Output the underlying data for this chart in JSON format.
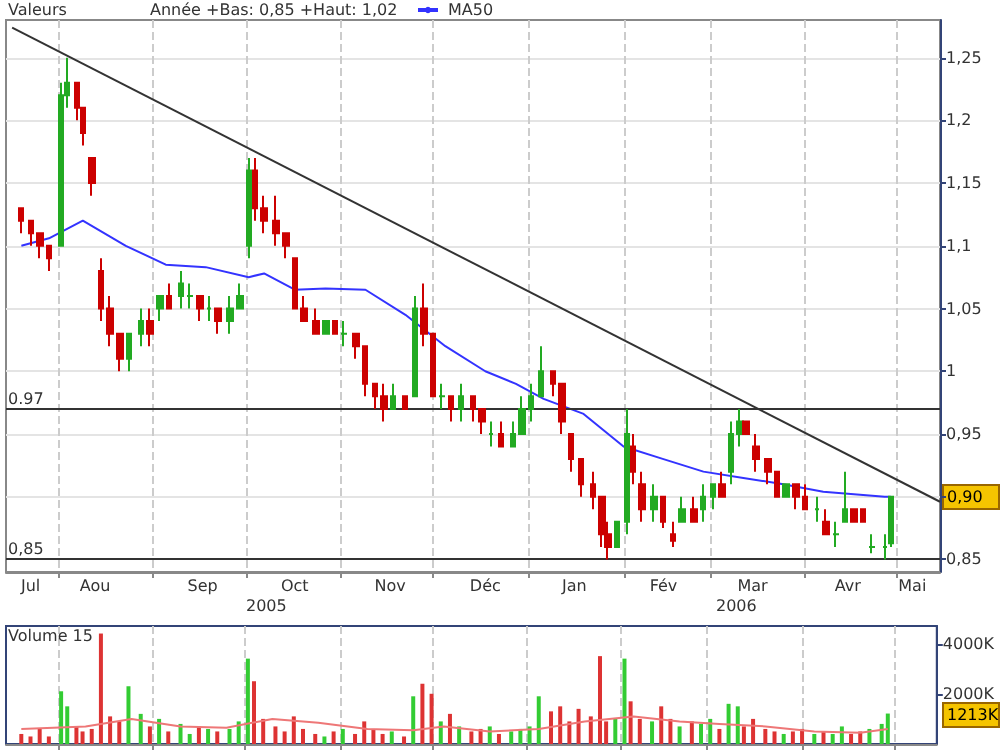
{
  "chart_data": [
    {
      "type": "candlestick",
      "legend_title": "Valeurs",
      "subtitle": "Année +Bas: 0,85 +Haut: 1,02",
      "legend": "top left",
      "grid": true,
      "x": [
        "2005-07-20",
        "2005-07-23",
        "2005-07-26",
        "2005-07-29",
        "2005-08-02",
        "2005-08-04",
        "2005-08-07",
        "2005-08-09",
        "2005-08-12",
        "2005-08-15",
        "2005-08-18",
        "2005-08-21",
        "2005-08-24",
        "2005-08-28",
        "2005-08-31",
        "2005-09-03",
        "2005-09-06",
        "2005-09-10",
        "2005-09-13",
        "2005-09-16",
        "2005-09-19",
        "2005-09-22",
        "2005-09-26",
        "2005-09-29",
        "2005-10-02",
        "2005-10-04",
        "2005-10-07",
        "2005-10-11",
        "2005-10-14",
        "2005-10-17",
        "2005-10-20",
        "2005-10-24",
        "2005-10-27",
        "2005-10-30",
        "2005-11-02",
        "2005-11-06",
        "2005-11-09",
        "2005-11-12",
        "2005-11-15",
        "2005-11-18",
        "2005-11-22",
        "2005-11-25",
        "2005-11-28",
        "2005-12-01",
        "2005-12-04",
        "2005-12-07",
        "2005-12-10",
        "2005-12-14",
        "2005-12-17",
        "2005-12-20",
        "2005-12-23",
        "2005-12-27",
        "2005-12-30",
        "2006-01-02",
        "2006-01-05",
        "2006-01-09",
        "2006-01-12",
        "2006-01-15",
        "2006-01-18",
        "2006-01-22",
        "2006-01-25",
        "2006-01-27",
        "2006-01-30",
        "2006-02-02",
        "2006-02-04",
        "2006-02-07",
        "2006-02-11",
        "2006-02-14",
        "2006-02-17",
        "2006-02-20",
        "2006-02-24",
        "2006-02-27",
        "2006-03-02",
        "2006-03-05",
        "2006-03-08",
        "2006-03-11",
        "2006-03-13",
        "2006-03-16",
        "2006-03-20",
        "2006-03-23",
        "2006-03-26",
        "2006-03-29",
        "2006-04-01",
        "2006-04-05",
        "2006-04-08",
        "2006-04-11",
        "2006-04-14",
        "2006-04-17",
        "2006-04-20",
        "2006-04-23",
        "2006-04-27",
        "2006-04-29"
      ],
      "ohlc": [
        [
          1.13,
          1.13,
          1.11,
          1.12
        ],
        [
          1.12,
          1.12,
          1.1,
          1.11
        ],
        [
          1.11,
          1.11,
          1.09,
          1.1
        ],
        [
          1.1,
          1.1,
          1.08,
          1.09
        ],
        [
          1.1,
          1.23,
          1.1,
          1.22
        ],
        [
          1.22,
          1.25,
          1.21,
          1.23
        ],
        [
          1.23,
          1.23,
          1.2,
          1.21
        ],
        [
          1.21,
          1.21,
          1.18,
          1.19
        ],
        [
          1.17,
          1.17,
          1.14,
          1.15
        ],
        [
          1.08,
          1.09,
          1.04,
          1.05
        ],
        [
          1.05,
          1.06,
          1.02,
          1.03
        ],
        [
          1.03,
          1.03,
          1,
          1.01
        ],
        [
          1.01,
          1.03,
          1,
          1.03
        ],
        [
          1.03,
          1.05,
          1.02,
          1.04
        ],
        [
          1.04,
          1.05,
          1.02,
          1.03
        ],
        [
          1.05,
          1.06,
          1.04,
          1.06
        ],
        [
          1.06,
          1.07,
          1.05,
          1.05
        ],
        [
          1.06,
          1.08,
          1.05,
          1.07
        ],
        [
          1.06,
          1.07,
          1.05,
          1.06
        ],
        [
          1.06,
          1.06,
          1.04,
          1.05
        ],
        [
          1.05,
          1.06,
          1.04,
          1.05
        ],
        [
          1.05,
          1.05,
          1.03,
          1.04
        ],
        [
          1.04,
          1.06,
          1.03,
          1.05
        ],
        [
          1.05,
          1.07,
          1.05,
          1.06
        ],
        [
          1.1,
          1.17,
          1.09,
          1.16
        ],
        [
          1.16,
          1.17,
          1.12,
          1.13
        ],
        [
          1.13,
          1.14,
          1.11,
          1.12
        ],
        [
          1.12,
          1.14,
          1.1,
          1.11
        ],
        [
          1.11,
          1.11,
          1.09,
          1.1
        ],
        [
          1.09,
          1.09,
          1.05,
          1.05
        ],
        [
          1.05,
          1.06,
          1.04,
          1.04
        ],
        [
          1.04,
          1.05,
          1.03,
          1.03
        ],
        [
          1.03,
          1.04,
          1.03,
          1.04
        ],
        [
          1.04,
          1.04,
          1.03,
          1.03
        ],
        [
          1.03,
          1.04,
          1.02,
          1.03
        ],
        [
          1.03,
          1.03,
          1.01,
          1.02
        ],
        [
          1.02,
          1.02,
          0.98,
          0.99
        ],
        [
          0.99,
          0.99,
          0.97,
          0.98
        ],
        [
          0.98,
          0.99,
          0.96,
          0.97
        ],
        [
          0.97,
          0.99,
          0.97,
          0.98
        ],
        [
          0.98,
          0.98,
          0.97,
          0.97
        ],
        [
          0.98,
          1.06,
          0.98,
          1.05
        ],
        [
          1.05,
          1.07,
          1.02,
          1.03
        ],
        [
          1.03,
          1.03,
          0.98,
          0.98
        ],
        [
          0.98,
          0.99,
          0.97,
          0.98
        ],
        [
          0.98,
          0.98,
          0.96,
          0.97
        ],
        [
          0.97,
          0.99,
          0.96,
          0.98
        ],
        [
          0.98,
          0.98,
          0.96,
          0.97
        ],
        [
          0.97,
          0.97,
          0.95,
          0.96
        ],
        [
          0.95,
          0.96,
          0.94,
          0.95
        ],
        [
          0.95,
          0.96,
          0.94,
          0.94
        ],
        [
          0.94,
          0.96,
          0.94,
          0.95
        ],
        [
          0.95,
          0.98,
          0.95,
          0.97
        ],
        [
          0.97,
          0.99,
          0.96,
          0.98
        ],
        [
          0.98,
          1.02,
          0.98,
          1
        ],
        [
          1,
          1,
          0.98,
          0.99
        ],
        [
          0.99,
          0.99,
          0.95,
          0.96
        ],
        [
          0.95,
          0.95,
          0.92,
          0.93
        ],
        [
          0.93,
          0.93,
          0.9,
          0.91
        ],
        [
          0.91,
          0.92,
          0.89,
          0.9
        ],
        [
          0.9,
          0.9,
          0.86,
          0.87
        ],
        [
          0.87,
          0.88,
          0.85,
          0.86
        ],
        [
          0.86,
          0.88,
          0.86,
          0.88
        ],
        [
          0.88,
          0.97,
          0.87,
          0.95
        ],
        [
          0.94,
          0.95,
          0.91,
          0.92
        ],
        [
          0.91,
          0.92,
          0.88,
          0.89
        ],
        [
          0.89,
          0.91,
          0.88,
          0.9
        ],
        [
          0.9,
          0.9,
          0.875,
          0.88
        ],
        [
          0.87,
          0.88,
          0.86,
          0.865
        ],
        [
          0.88,
          0.9,
          0.88,
          0.89
        ],
        [
          0.89,
          0.9,
          0.88,
          0.88
        ],
        [
          0.89,
          0.91,
          0.88,
          0.9
        ],
        [
          0.9,
          0.91,
          0.89,
          0.91
        ],
        [
          0.91,
          0.92,
          0.9,
          0.9
        ],
        [
          0.92,
          0.96,
          0.91,
          0.95
        ],
        [
          0.95,
          0.97,
          0.94,
          0.96
        ],
        [
          0.96,
          0.96,
          0.95,
          0.95
        ],
        [
          0.94,
          0.95,
          0.92,
          0.93
        ],
        [
          0.93,
          0.93,
          0.91,
          0.92
        ],
        [
          0.92,
          0.92,
          0.9,
          0.9
        ],
        [
          0.9,
          0.91,
          0.9,
          0.91
        ],
        [
          0.91,
          0.91,
          0.89,
          0.9
        ],
        [
          0.9,
          0.91,
          0.89,
          0.89
        ],
        [
          0.89,
          0.9,
          0.88,
          0.89
        ],
        [
          0.88,
          0.89,
          0.87,
          0.87
        ],
        [
          0.87,
          0.88,
          0.86,
          0.87
        ],
        [
          0.88,
          0.92,
          0.88,
          0.89
        ],
        [
          0.89,
          0.89,
          0.88,
          0.88
        ],
        [
          0.89,
          0.89,
          0.88,
          0.88
        ],
        [
          0.86,
          0.87,
          0.855,
          0.86
        ],
        [
          0.86,
          0.87,
          0.85,
          0.86
        ],
        [
          0.863,
          0.9,
          0.86,
          0.9
        ]
      ],
      "colors": [
        "#cc0000",
        "#cc0000",
        "#cc0000",
        "#cc0000",
        "#22aa22",
        "#22aa22",
        "#cc0000",
        "#cc0000",
        "#cc0000",
        "#cc0000",
        "#cc0000",
        "#cc0000",
        "#22aa22",
        "#22aa22",
        "#cc0000",
        "#22aa22",
        "#cc0000",
        "#22aa22",
        "#22aa22",
        "#cc0000",
        "#22aa22",
        "#cc0000",
        "#22aa22",
        "#22aa22",
        "#22aa22",
        "#cc0000",
        "#cc0000",
        "#cc0000",
        "#cc0000",
        "#cc0000",
        "#cc0000",
        "#cc0000",
        "#22aa22",
        "#cc0000",
        "#22aa22",
        "#cc0000",
        "#cc0000",
        "#cc0000",
        "#cc0000",
        "#22aa22",
        "#cc0000",
        "#22aa22",
        "#cc0000",
        "#cc0000",
        "#22aa22",
        "#cc0000",
        "#22aa22",
        "#cc0000",
        "#cc0000",
        "#22aa22",
        "#cc0000",
        "#22aa22",
        "#22aa22",
        "#22aa22",
        "#22aa22",
        "#cc0000",
        "#cc0000",
        "#cc0000",
        "#cc0000",
        "#cc0000",
        "#cc0000",
        "#cc0000",
        "#22aa22",
        "#22aa22",
        "#cc0000",
        "#cc0000",
        "#22aa22",
        "#cc0000",
        "#cc0000",
        "#22aa22",
        "#cc0000",
        "#22aa22",
        "#22aa22",
        "#cc0000",
        "#22aa22",
        "#22aa22",
        "#cc0000",
        "#cc0000",
        "#cc0000",
        "#cc0000",
        "#22aa22",
        "#cc0000",
        "#cc0000",
        "#22aa22",
        "#cc0000",
        "#22aa22",
        "#22aa22",
        "#cc0000",
        "#cc0000",
        "#22aa22",
        "#22aa22",
        "#22aa22"
      ],
      "series": [
        {
          "name": "MA50",
          "type": "line",
          "color": "#3333ff",
          "x": [
            "2005-07-20",
            "2005-07-29",
            "2005-08-09",
            "2005-08-23",
            "2005-09-05",
            "2005-09-18",
            "2005-10-02",
            "2005-10-07",
            "2005-10-17",
            "2005-10-27",
            "2005-11-09",
            "2005-11-22",
            "2005-12-05",
            "2005-12-18",
            "2005-12-28",
            "2006-01-06",
            "2006-01-19",
            "2006-02-01",
            "2006-02-14",
            "2006-02-27",
            "2006-03-12",
            "2006-03-25",
            "2006-04-07",
            "2006-04-27",
            "2006-04-29"
          ],
          "values": [
            1.1,
            1.106,
            1.12,
            1.1,
            1.085,
            1.083,
            1.075,
            1.078,
            1.065,
            1.066,
            1.065,
            1.045,
            1.02,
            1,
            0.99,
            0.978,
            0.966,
            0.94,
            0.93,
            0.92,
            0.915,
            0.91,
            0.904,
            0.9,
            0.9
          ]
        },
        {
          "type": "line",
          "color": "#333333",
          "x": [
            "2005-07-17",
            "2006-05-15"
          ],
          "values": [
            1.274,
            0.896
          ]
        }
      ],
      "xlim": [
        "2005-07-15",
        "2006-05-15"
      ],
      "xticks": [
        {
          "value": "2005-07-23",
          "label": "Jul"
        },
        {
          "value": "2005-08-13",
          "label": "Aou"
        },
        {
          "value": "2005-09-17",
          "label": "Sep"
        },
        {
          "value": "2005-10-17",
          "label": "Oct"
        },
        {
          "value": "2005-11-17",
          "label": "Nov"
        },
        {
          "value": "2005-12-18",
          "label": "Déc"
        },
        {
          "value": "2006-01-16",
          "label": "Jan"
        },
        {
          "value": "2006-02-14",
          "label": "Fév"
        },
        {
          "value": "2006-03-15",
          "label": "Mar"
        },
        {
          "value": "2006-04-15",
          "label": "Avr"
        },
        {
          "value": "2006-05-06",
          "label": "Mai"
        },
        {
          "value": "2005-08-01",
          "label": null
        },
        {
          "value": "2005-09-01",
          "label": null
        },
        {
          "value": "2005-10-01",
          "label": null
        },
        {
          "value": "2005-11-01",
          "label": null
        },
        {
          "value": "2005-12-01",
          "label": null
        },
        {
          "value": "2006-01-01",
          "label": null
        },
        {
          "value": "2006-02-01",
          "label": null
        },
        {
          "value": "2006-03-01",
          "label": null
        },
        {
          "value": "2006-04-01",
          "label": null
        },
        {
          "value": "2006-05-01",
          "label": null
        }
      ],
      "ylim": [
        0.84,
        1.28
      ],
      "yticks": [
        {
          "value": 0.85,
          "label": "0,85"
        },
        {
          "value": 0.9,
          "label": null
        },
        {
          "value": 0.95,
          "label": "0,95"
        },
        {
          "value": 1,
          "label": "1"
        },
        {
          "value": 1.05,
          "label": "1,05"
        },
        {
          "value": 1.1,
          "label": "1,1"
        },
        {
          "value": 1.15,
          "label": "1,15"
        },
        {
          "value": 1.2,
          "label": "1,2"
        },
        {
          "value": 1.25,
          "label": "1,25"
        }
      ],
      "ref_lines": [
        {
          "axis": "y",
          "value": 0.97,
          "label": "0.97",
          "color": "#333333"
        },
        {
          "axis": "y",
          "value": 0.85,
          "label": "0,85",
          "color": "#333333"
        }
      ],
      "annotations": [
        "2005",
        "2006",
        "0,90"
      ]
    },
    {
      "type": "bar",
      "title": "Volume 15",
      "grid": "x",
      "tick_labels": "y",
      "x": [
        "2005-07-20",
        "2005-07-23",
        "2005-07-26",
        "2005-07-29",
        "2005-08-02",
        "2005-08-04",
        "2005-08-07",
        "2005-08-09",
        "2005-08-12",
        "2005-08-15",
        "2005-08-18",
        "2005-08-21",
        "2005-08-24",
        "2005-08-28",
        "2005-08-31",
        "2005-09-03",
        "2005-09-06",
        "2005-09-10",
        "2005-09-13",
        "2005-09-16",
        "2005-09-19",
        "2005-09-22",
        "2005-09-26",
        "2005-09-29",
        "2005-10-02",
        "2005-10-04",
        "2005-10-07",
        "2005-10-11",
        "2005-10-14",
        "2005-10-17",
        "2005-10-20",
        "2005-10-24",
        "2005-10-27",
        "2005-10-30",
        "2005-11-02",
        "2005-11-06",
        "2005-11-09",
        "2005-11-12",
        "2005-11-15",
        "2005-11-18",
        "2005-11-22",
        "2005-11-25",
        "2005-11-28",
        "2005-12-01",
        "2005-12-04",
        "2005-12-07",
        "2005-12-10",
        "2005-12-14",
        "2005-12-17",
        "2005-12-20",
        "2005-12-23",
        "2005-12-27",
        "2005-12-30",
        "2006-01-02",
        "2006-01-05",
        "2006-01-09",
        "2006-01-12",
        "2006-01-15",
        "2006-01-18",
        "2006-01-22",
        "2006-01-25",
        "2006-01-27",
        "2006-01-30",
        "2006-02-02",
        "2006-02-04",
        "2006-02-07",
        "2006-02-11",
        "2006-02-14",
        "2006-02-17",
        "2006-02-20",
        "2006-02-24",
        "2006-02-27",
        "2006-03-02",
        "2006-03-05",
        "2006-03-08",
        "2006-03-11",
        "2006-03-13",
        "2006-03-16",
        "2006-03-20",
        "2006-03-23",
        "2006-03-26",
        "2006-03-29",
        "2006-04-01",
        "2006-04-05",
        "2006-04-08",
        "2006-04-11",
        "2006-04-14",
        "2006-04-17",
        "2006-04-20",
        "2006-04-23",
        "2006-04-27",
        "2006-04-29"
      ],
      "series": [
        {
          "type": "bar",
          "values": [
            400,
            300,
            600,
            300,
            2100,
            1500,
            700,
            500,
            600,
            4400,
            1100,
            900,
            2300,
            1200,
            700,
            1000,
            500,
            800,
            400,
            700,
            600,
            500,
            600,
            900,
            3400,
            2500,
            1000,
            700,
            500,
            1100,
            600,
            400,
            300,
            500,
            600,
            400,
            900,
            600,
            400,
            500,
            300,
            1900,
            2400,
            2000,
            900,
            1200,
            700,
            500,
            600,
            700,
            400,
            500,
            600,
            700,
            1900,
            1300,
            1500,
            900,
            1400,
            1100,
            3500,
            900,
            1000,
            3400,
            1700,
            1000,
            900,
            1500,
            1000,
            700,
            900,
            800,
            1000,
            600,
            1600,
            1500,
            700,
            1000,
            600,
            500,
            400,
            500,
            600,
            400,
            500,
            400,
            700,
            400,
            500,
            600,
            800,
            1213
          ],
          "colors": [
            "#dd3333",
            "#dd3333",
            "#dd3333",
            "#dd3333",
            "#33cc33",
            "#33cc33",
            "#dd3333",
            "#dd3333",
            "#dd3333",
            "#dd3333",
            "#dd3333",
            "#dd3333",
            "#33cc33",
            "#33cc33",
            "#dd3333",
            "#33cc33",
            "#dd3333",
            "#33cc33",
            "#33cc33",
            "#dd3333",
            "#33cc33",
            "#dd3333",
            "#33cc33",
            "#33cc33",
            "#33cc33",
            "#dd3333",
            "#dd3333",
            "#dd3333",
            "#dd3333",
            "#dd3333",
            "#dd3333",
            "#dd3333",
            "#33cc33",
            "#dd3333",
            "#33cc33",
            "#dd3333",
            "#dd3333",
            "#dd3333",
            "#dd3333",
            "#33cc33",
            "#dd3333",
            "#33cc33",
            "#dd3333",
            "#dd3333",
            "#33cc33",
            "#dd3333",
            "#33cc33",
            "#dd3333",
            "#dd3333",
            "#33cc33",
            "#dd3333",
            "#33cc33",
            "#33cc33",
            "#33cc33",
            "#33cc33",
            "#dd3333",
            "#dd3333",
            "#dd3333",
            "#dd3333",
            "#dd3333",
            "#dd3333",
            "#dd3333",
            "#33cc33",
            "#33cc33",
            "#dd3333",
            "#dd3333",
            "#33cc33",
            "#dd3333",
            "#dd3333",
            "#33cc33",
            "#dd3333",
            "#33cc33",
            "#33cc33",
            "#dd3333",
            "#33cc33",
            "#33cc33",
            "#dd3333",
            "#dd3333",
            "#dd3333",
            "#dd3333",
            "#33cc33",
            "#dd3333",
            "#dd3333",
            "#33cc33",
            "#dd3333",
            "#33cc33",
            "#33cc33",
            "#dd3333",
            "#dd3333",
            "#33cc33",
            "#33cc33",
            "#33cc33"
          ]
        },
        {
          "type": "line",
          "color": "#ee7777",
          "x": [
            "2005-07-20",
            "2005-08-10",
            "2005-08-25",
            "2005-09-10",
            "2005-09-25",
            "2005-10-10",
            "2005-10-25",
            "2005-11-10",
            "2005-11-25",
            "2005-12-05",
            "2005-12-20",
            "2006-01-05",
            "2006-01-20",
            "2006-02-05",
            "2006-02-20",
            "2006-03-05",
            "2006-03-20",
            "2006-04-05",
            "2006-04-20",
            "2006-04-29"
          ],
          "values": [
            600,
            700,
            1000,
            700,
            650,
            1000,
            850,
            600,
            550,
            700,
            500,
            600,
            900,
            1100,
            900,
            800,
            700,
            500,
            450,
            600
          ]
        }
      ],
      "xlim": [
        "2005-07-15",
        "2006-05-15"
      ],
      "xticks": [
        {
          "value": "2005-08-01",
          "label": null
        },
        {
          "value": "2005-09-01",
          "label": null
        },
        {
          "value": "2005-10-01",
          "label": null
        },
        {
          "value": "2005-11-01",
          "label": null
        },
        {
          "value": "2005-12-01",
          "label": null
        },
        {
          "value": "2006-01-01",
          "label": null
        },
        {
          "value": "2006-02-01",
          "label": null
        },
        {
          "value": "2006-03-01",
          "label": null
        },
        {
          "value": "2006-04-01",
          "label": null
        },
        {
          "value": "2006-05-01",
          "label": null
        }
      ],
      "ylim": [
        0,
        4700
      ],
      "yticks": [
        {
          "value": 2000,
          "label": "2000K"
        },
        {
          "value": 4000,
          "label": "4000K"
        }
      ],
      "annotations": [
        "1213K"
      ]
    }
  ]
}
